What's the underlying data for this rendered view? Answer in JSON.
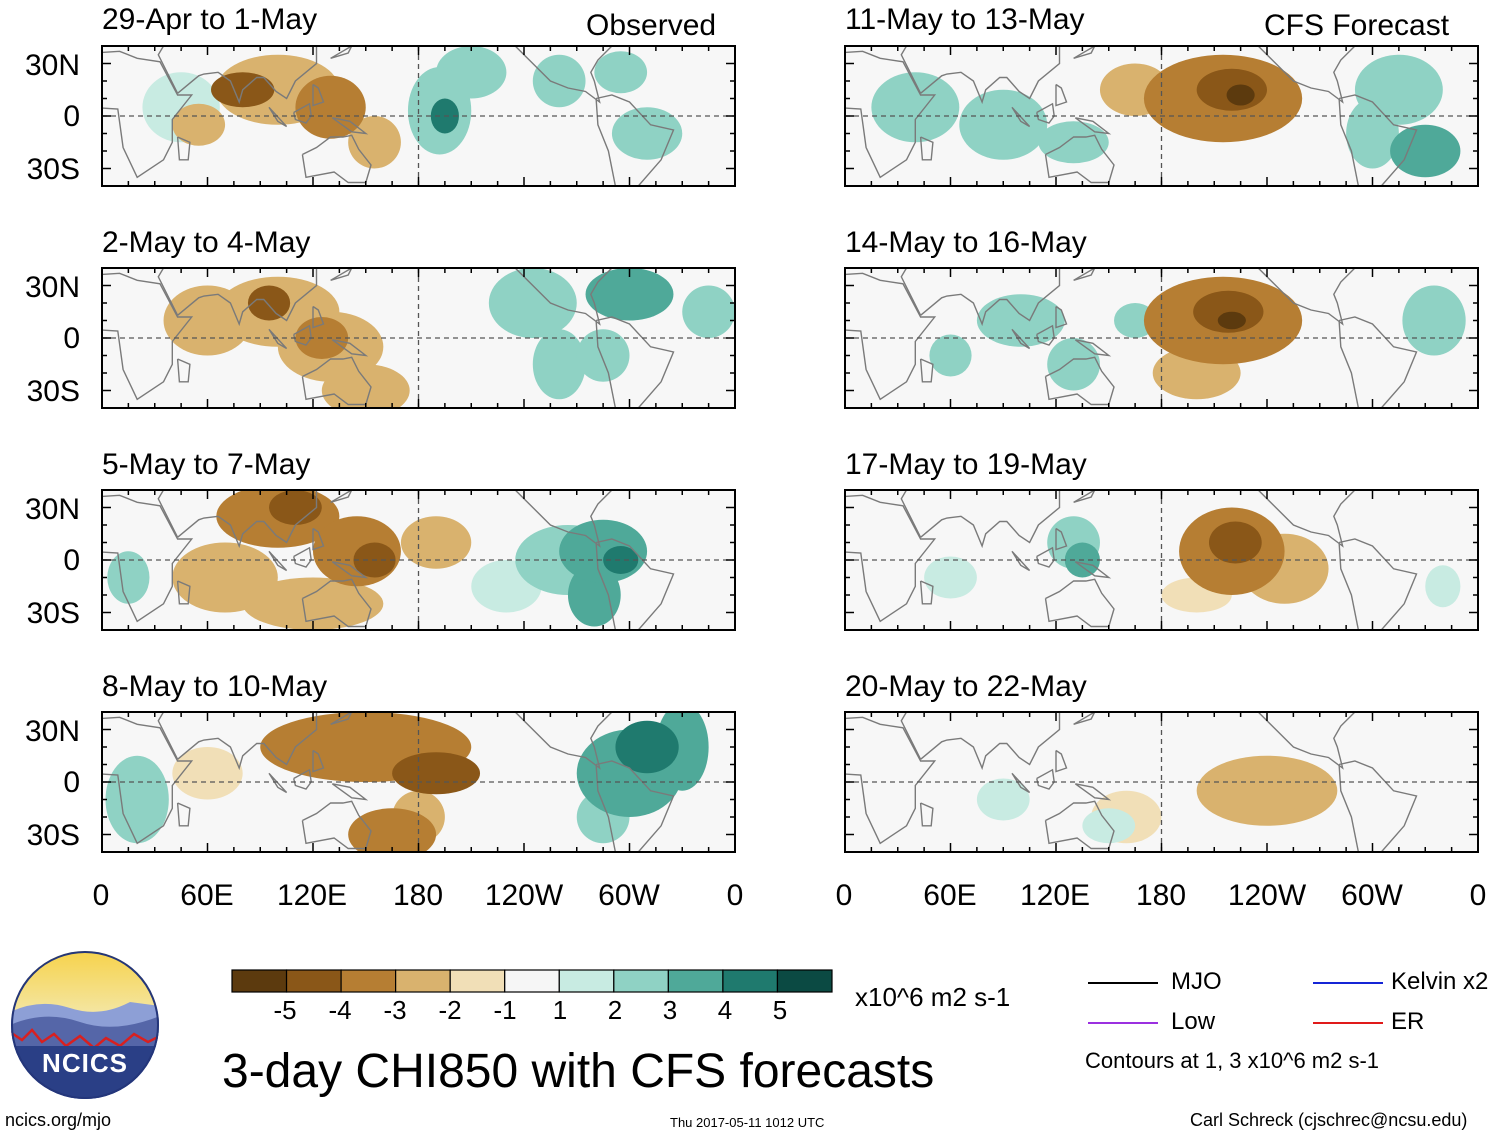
{
  "chart_data": {
    "type": "heatmap",
    "title": "3-day CHI850 with CFS forecasts",
    "variable": "CHI850",
    "units": "x10^6 m2 s-1",
    "column_headers": [
      "Observed",
      "CFS Forecast"
    ],
    "x_tick_labels": [
      "0",
      "60E",
      "120E",
      "180",
      "120W",
      "60W",
      "0"
    ],
    "y_tick_labels": [
      "30N",
      "0",
      "30S"
    ],
    "xlim": [
      0,
      360
    ],
    "ylim": [
      -40,
      40
    ],
    "colorbar": {
      "labels": [
        "-5",
        "-4",
        "-3",
        "-2",
        "-1",
        "1",
        "2",
        "3",
        "4",
        "5"
      ],
      "colors": [
        "#5c3a0e",
        "#8a5718",
        "#b67e33",
        "#d9b26e",
        "#f1dfb7",
        "#f6f6f6",
        "#c8ebe2",
        "#8fd2c4",
        "#4fa999",
        "#1f7a6e",
        "#0b4a43"
      ]
    },
    "legend": {
      "items": [
        {
          "label": "MJO",
          "color": "#000000"
        },
        {
          "label": "Kelvin x2",
          "color": "#1525d6"
        },
        {
          "label": "Low",
          "color": "#9b30e0"
        },
        {
          "label": "ER",
          "color": "#e01a1a"
        }
      ],
      "note": "Contours at 1, 3 x10^6 m2 s-1"
    },
    "panels": [
      {
        "period": "29-Apr to 1-May",
        "source": "Observed",
        "blobs": [
          [
            45,
            5,
            22,
            20,
            1
          ],
          [
            100,
            15,
            35,
            20,
            -2.2
          ],
          [
            80,
            15,
            18,
            10,
            -3.5
          ],
          [
            130,
            5,
            20,
            18,
            -2.5
          ],
          [
            155,
            -15,
            15,
            15,
            -1.5
          ],
          [
            55,
            -5,
            15,
            12,
            -1.5
          ],
          [
            210,
            25,
            20,
            15,
            1.5
          ],
          [
            192,
            3,
            18,
            25,
            2.2
          ],
          [
            195,
            0,
            8,
            10,
            3.5
          ],
          [
            260,
            20,
            15,
            15,
            1.5
          ],
          [
            295,
            25,
            15,
            12,
            2
          ],
          [
            310,
            -10,
            20,
            15,
            1.5
          ]
        ]
      },
      {
        "period": "2-May to 4-May",
        "source": "Observed",
        "blobs": [
          [
            60,
            10,
            25,
            20,
            -1.5
          ],
          [
            100,
            15,
            35,
            20,
            -2.2
          ],
          [
            95,
            20,
            12,
            10,
            -3.5
          ],
          [
            130,
            -5,
            30,
            20,
            -2
          ],
          [
            150,
            -30,
            25,
            15,
            -1.5
          ],
          [
            125,
            0,
            15,
            12,
            -3.2
          ],
          [
            245,
            20,
            25,
            20,
            2
          ],
          [
            260,
            -15,
            15,
            20,
            1.5
          ],
          [
            300,
            25,
            25,
            15,
            2.5
          ],
          [
            285,
            -10,
            15,
            15,
            1.5
          ],
          [
            345,
            15,
            15,
            15,
            2
          ]
        ]
      },
      {
        "period": "5-May to 7-May",
        "source": "Observed",
        "blobs": [
          [
            100,
            25,
            35,
            18,
            -2.5
          ],
          [
            110,
            30,
            15,
            10,
            -3.5
          ],
          [
            145,
            5,
            25,
            20,
            -2.5
          ],
          [
            155,
            0,
            12,
            10,
            -3.5
          ],
          [
            120,
            -25,
            40,
            15,
            -2
          ],
          [
            70,
            -10,
            30,
            20,
            -1.5
          ],
          [
            190,
            10,
            20,
            15,
            -1.5
          ],
          [
            265,
            0,
            30,
            20,
            2
          ],
          [
            285,
            5,
            25,
            18,
            3
          ],
          [
            295,
            0,
            10,
            8,
            4
          ],
          [
            280,
            -20,
            15,
            18,
            2.5
          ],
          [
            15,
            -10,
            12,
            15,
            1.5
          ],
          [
            230,
            -15,
            20,
            15,
            1
          ]
        ]
      },
      {
        "period": "8-May to 10-May",
        "source": "Observed",
        "blobs": [
          [
            150,
            20,
            60,
            20,
            -2.5
          ],
          [
            190,
            5,
            25,
            12,
            -3.5
          ],
          [
            165,
            -30,
            25,
            15,
            -2.5
          ],
          [
            180,
            -20,
            15,
            15,
            -2
          ],
          [
            60,
            5,
            20,
            15,
            -1
          ],
          [
            20,
            -10,
            18,
            25,
            2
          ],
          [
            300,
            5,
            30,
            25,
            3
          ],
          [
            310,
            20,
            18,
            15,
            3.5
          ],
          [
            330,
            20,
            15,
            25,
            3
          ],
          [
            285,
            -20,
            15,
            15,
            2
          ]
        ]
      },
      {
        "period": "11-May to 13-May",
        "source": "CFS Forecast",
        "blobs": [
          [
            215,
            10,
            45,
            25,
            -2.5
          ],
          [
            220,
            15,
            20,
            12,
            -3.8
          ],
          [
            225,
            12,
            8,
            6,
            -5
          ],
          [
            165,
            15,
            20,
            15,
            -1.5
          ],
          [
            40,
            5,
            25,
            20,
            1.5
          ],
          [
            90,
            -5,
            25,
            20,
            1.5
          ],
          [
            130,
            -15,
            20,
            12,
            1.5
          ],
          [
            315,
            15,
            25,
            20,
            2
          ],
          [
            330,
            -20,
            20,
            15,
            2.5
          ],
          [
            300,
            -10,
            15,
            20,
            2
          ]
        ]
      },
      {
        "period": "14-May to 16-May",
        "source": "CFS Forecast",
        "blobs": [
          [
            215,
            10,
            45,
            25,
            -2.5
          ],
          [
            218,
            15,
            20,
            12,
            -3.8
          ],
          [
            220,
            10,
            8,
            5,
            -5
          ],
          [
            200,
            -20,
            25,
            15,
            -1.5
          ],
          [
            100,
            10,
            25,
            15,
            1.5
          ],
          [
            130,
            -15,
            15,
            15,
            2
          ],
          [
            60,
            -10,
            12,
            12,
            1.5
          ],
          [
            165,
            10,
            12,
            10,
            1.5
          ],
          [
            335,
            10,
            18,
            20,
            1.5
          ]
        ]
      },
      {
        "period": "17-May to 19-May",
        "source": "CFS Forecast",
        "blobs": [
          [
            220,
            5,
            30,
            25,
            -2.5
          ],
          [
            222,
            10,
            15,
            12,
            -3.5
          ],
          [
            250,
            -5,
            25,
            20,
            -1.5
          ],
          [
            130,
            10,
            15,
            15,
            2
          ],
          [
            135,
            0,
            10,
            10,
            2.5
          ],
          [
            60,
            -10,
            15,
            12,
            1
          ],
          [
            340,
            -15,
            10,
            12,
            1
          ],
          [
            200,
            -20,
            20,
            10,
            -1
          ]
        ]
      },
      {
        "period": "20-May to 22-May",
        "source": "CFS Forecast",
        "blobs": [
          [
            240,
            -5,
            40,
            20,
            -1.5
          ],
          [
            240,
            -10,
            18,
            10,
            -2
          ],
          [
            160,
            -20,
            20,
            15,
            -1
          ],
          [
            90,
            -10,
            15,
            12,
            1
          ],
          [
            150,
            -25,
            15,
            10,
            1
          ]
        ]
      }
    ]
  },
  "labels": {
    "title": "3-day CHI850 with CFS forecasts",
    "units": "x10^6 m2 s-1",
    "observed": "Observed",
    "forecast": "CFS Forecast",
    "lat_30n": "30N",
    "lat_0": "0",
    "lat_30s": "30S",
    "contours_note": "Contours at 1, 3 x10^6 m2 s-1",
    "logo_text": "NCICS",
    "url": "ncics.org/mjo",
    "timestamp": "Thu 2017-05-11 1012 UTC",
    "author": "Carl Schreck (cjschrec@ncsu.edu)"
  },
  "colors": {
    "lat_line": "#555555",
    "coast": "#7a7a7a",
    "logo_sky_top": "#f6d24a",
    "logo_sky": "#b9c8e8",
    "logo_mountain": "#5566a8",
    "logo_band": "#2a3f86"
  }
}
